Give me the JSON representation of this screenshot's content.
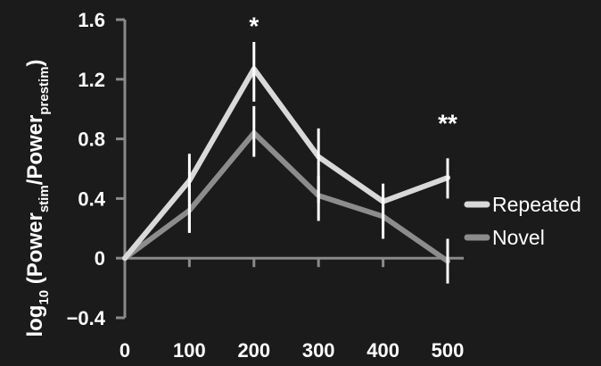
{
  "chart_data": {
    "type": "line",
    "x": [
      0,
      100,
      200,
      300,
      400,
      500
    ],
    "x_tick_labels": [
      "0",
      "100",
      "200",
      "300",
      "400",
      "500"
    ],
    "y_ticks": [
      -0.4,
      0,
      0.4,
      0.8,
      1.2,
      1.6
    ],
    "y_tick_labels": [
      "−0.4",
      "0",
      "0.4",
      "0.8",
      "1.2",
      "1.6"
    ],
    "ylim": [
      -0.4,
      1.6
    ],
    "xlim": [
      0,
      500
    ],
    "ylabel": {
      "prefix": "log",
      "prefix_sub": "10",
      "open": " (Power",
      "sub1": "stim",
      "mid": "/Power",
      "sub2": "prestim",
      "close": ")"
    },
    "xlabel": "",
    "title": "",
    "grid": false,
    "legend_placement": "right",
    "series": [
      {
        "name": "Repeated",
        "color": "#d9d9d9",
        "values": [
          0,
          0.52,
          1.27,
          0.68,
          0.38,
          0.54
        ],
        "error_low": [
          0,
          0.17,
          1.05,
          0.37,
          0.23,
          0.4
        ],
        "error_high": [
          0,
          0.7,
          1.45,
          0.87,
          0.5,
          0.67
        ]
      },
      {
        "name": "Novel",
        "color": "#8c8c8c",
        "values": [
          0,
          0.32,
          0.84,
          0.42,
          0.28,
          -0.02
        ],
        "error_low": [
          0,
          0.17,
          0.68,
          0.25,
          0.13,
          -0.17
        ],
        "error_high": [
          0,
          0.5,
          1.02,
          0.55,
          0.45,
          0.13
        ]
      }
    ],
    "annotations": [
      {
        "text": "*",
        "x": 200,
        "y": 1.5
      },
      {
        "text": "**",
        "x": 500,
        "y": 0.85
      }
    ]
  }
}
